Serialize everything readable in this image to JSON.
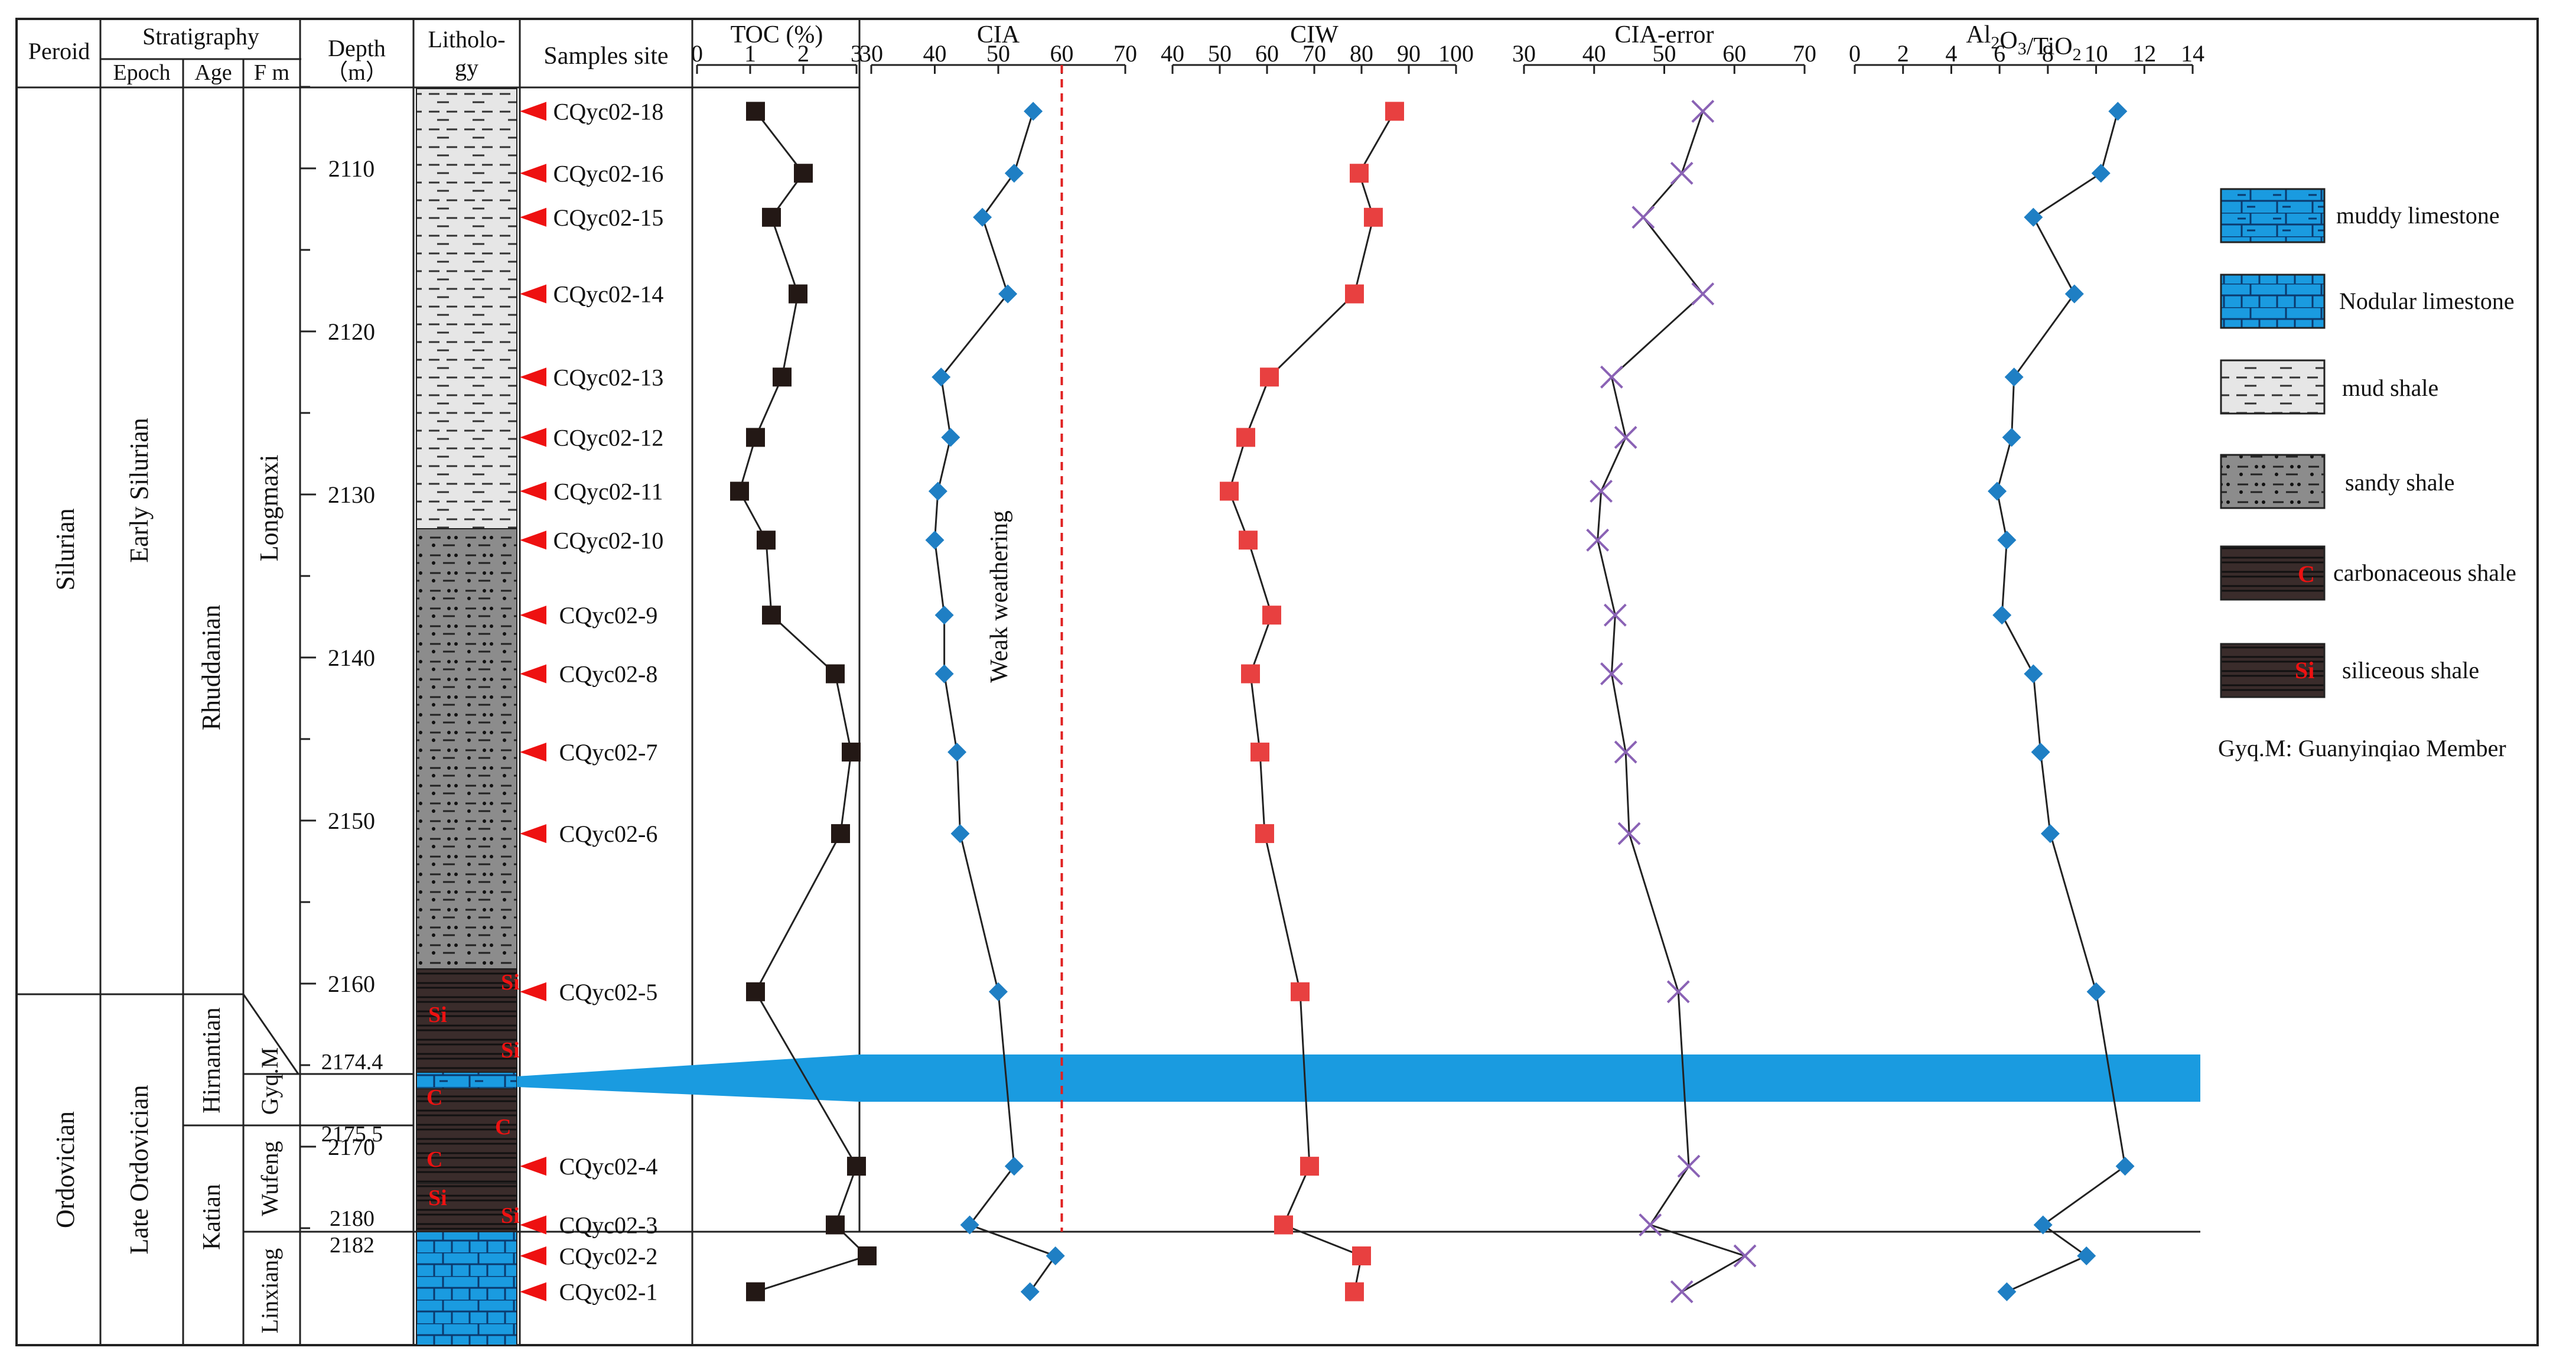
{
  "columns": {
    "period": "Peroid",
    "stratigraphy": "Stratigraphy",
    "epoch": "Epoch",
    "age": "Age",
    "fm": "F m",
    "depth": "Depth",
    "depth_unit": "（m）",
    "lithology_1": "Litholo-",
    "lithology_2": "gy",
    "samples": "Samples site"
  },
  "stratigraphy": {
    "periods": [
      "Silurian",
      "Ordovician"
    ],
    "epochs": [
      "Early Silurian",
      "Late Ordovician"
    ],
    "ages": [
      "Rhuddanian",
      "Hirnantian",
      "Katian"
    ],
    "formations": [
      "Longmaxi",
      "Gyq.M",
      "Wufeng",
      "Linxiang"
    ]
  },
  "depth_axis": {
    "ticks": [
      2110,
      2120,
      2130,
      2140,
      2150,
      2160,
      2170
    ],
    "special_labels": [
      "2174.4",
      "2175.5",
      "2180",
      "2182"
    ]
  },
  "lithology_marks": {
    "siliceous": "Si",
    "carbonaceous": "C"
  },
  "samples": [
    "CQyc02-18",
    "CQyc02-16",
    "CQyc02-15",
    "CQyc02-14",
    "CQyc02-13",
    "CQyc02-12",
    "CQyc02-11",
    "CQyc02-10",
    "CQyc02-9",
    "CQyc02-8",
    "CQyc02-7",
    "CQyc02-6",
    "CQyc02-5",
    "CQyc02-4",
    "CQyc02-3",
    "CQyc02-2",
    "CQyc02-1"
  ],
  "annotation": "Weak weathering",
  "legend": {
    "items": [
      {
        "label": "muddy limestone",
        "pattern": "muddy-limestone"
      },
      {
        "label": "Nodular limestone",
        "pattern": "nodular-limestone"
      },
      {
        "label": "mud shale",
        "pattern": "mud-shale"
      },
      {
        "label": "sandy shale",
        "pattern": "sandy-shale"
      },
      {
        "label": "carbonaceous shale",
        "pattern": "carbonaceous-shale",
        "mark": "C"
      },
      {
        "label": "siliceous shale",
        "pattern": "siliceous-shale",
        "mark": "Si"
      }
    ],
    "note": "Gyq.M: Guanyinqiao Member"
  },
  "colors": {
    "limestone": "#1a9be0",
    "mud_shale": "#e6e6e6",
    "sandy_shale": "#8c8c8c",
    "dark_shale": "#3a2c2b",
    "sample_marker": "#ee1111",
    "toc_marker": "#231815",
    "cia_marker": "#1f7fc4",
    "ciw_marker": "#e84040",
    "cia_error_marker": "#8a62b5",
    "threshold_line": "#e02020"
  },
  "chart_data": {
    "type": "line",
    "y_axis": {
      "label": "Depth (m)",
      "ticks": [
        2110,
        2120,
        2130,
        2140,
        2150,
        2160,
        2170
      ],
      "inverted": true
    },
    "sample_depths": [
      2106.5,
      2110.3,
      2113.0,
      2117.7,
      2122.8,
      2126.5,
      2129.8,
      2132.8,
      2137.4,
      2141.0,
      2145.8,
      2150.8,
      2160.5,
      2171.2,
      2174.8,
      2176.7,
      2178.9
    ],
    "panels": [
      {
        "name": "TOC (%)",
        "xlim": [
          0,
          3
        ],
        "xticks": [
          0,
          1,
          2,
          3
        ],
        "marker": "square",
        "values": [
          1.1,
          2.0,
          1.4,
          1.9,
          1.6,
          1.1,
          0.8,
          1.3,
          1.4,
          2.6,
          2.9,
          2.7,
          1.1,
          3.0,
          2.6,
          3.2,
          1.1
        ]
      },
      {
        "name": "CIA",
        "xlim": [
          30,
          70
        ],
        "xticks": [
          30,
          40,
          50,
          60,
          70
        ],
        "marker": "diamond",
        "threshold": 60,
        "values": [
          55.5,
          52.5,
          47.5,
          51.5,
          41.0,
          42.5,
          40.5,
          40.0,
          41.5,
          41.5,
          43.5,
          44.0,
          50.0,
          52.5,
          45.5,
          59.0,
          55.0
        ]
      },
      {
        "name": "CIW",
        "xlim": [
          40,
          100
        ],
        "xticks": [
          40,
          50,
          60,
          70,
          80,
          90,
          100
        ],
        "marker": "square",
        "values": [
          87.0,
          79.5,
          82.5,
          78.5,
          60.5,
          55.5,
          52.0,
          56.0,
          61.0,
          56.5,
          58.5,
          59.5,
          67.0,
          69.0,
          63.5,
          80.0,
          78.5
        ]
      },
      {
        "name": "CIA-error",
        "xlim": [
          30,
          70
        ],
        "xticks": [
          30,
          40,
          50,
          60,
          70
        ],
        "marker": "x",
        "values": [
          55.5,
          52.5,
          47.0,
          55.5,
          42.5,
          44.5,
          41.0,
          40.5,
          43.0,
          42.5,
          44.5,
          45.0,
          52.0,
          53.5,
          48.0,
          61.5,
          52.5
        ]
      },
      {
        "name": "Al2O3/TiO2",
        "xlim": [
          0,
          14
        ],
        "xticks": [
          0,
          2,
          4,
          6,
          8,
          10,
          12,
          14
        ],
        "marker": "diamond",
        "values": [
          10.9,
          10.2,
          7.4,
          9.1,
          6.6,
          6.5,
          5.9,
          6.3,
          6.1,
          7.4,
          7.7,
          8.1,
          10.0,
          11.2,
          7.8,
          9.6,
          6.3
        ]
      }
    ]
  }
}
